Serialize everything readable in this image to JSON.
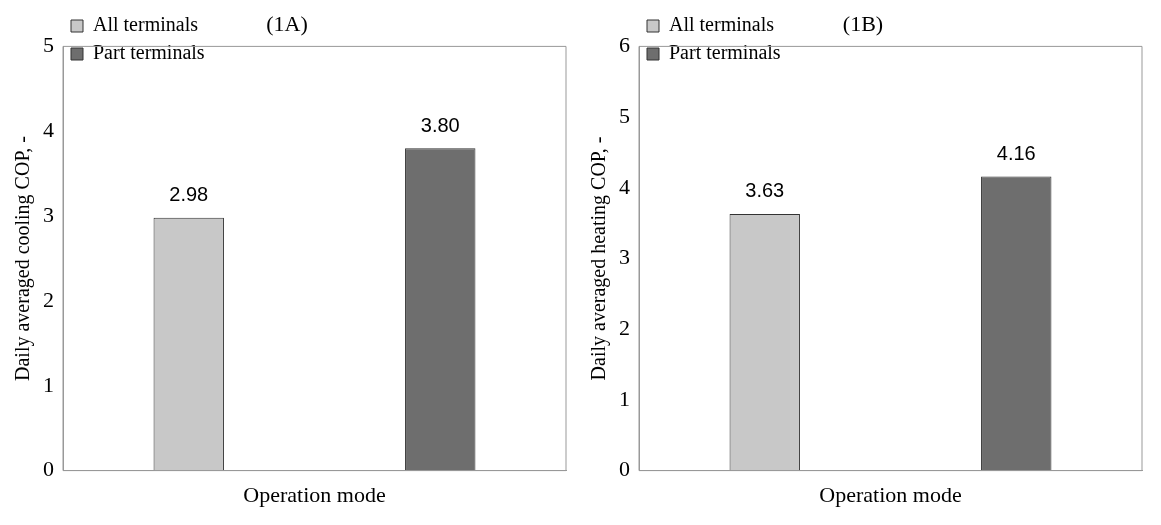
{
  "chart_data": [
    {
      "type": "bar",
      "title": "(1A)",
      "xlabel": "Operation mode",
      "ylabel": "Daily averaged cooling COP, -",
      "categories": [
        null,
        null
      ],
      "series": [
        {
          "name": "All terminals",
          "color": "#c8c8c8",
          "values": [
            2.98,
            null
          ]
        },
        {
          "name": "Part terminals",
          "color": "#6e6e6e",
          "values": [
            null,
            3.8
          ]
        }
      ],
      "value_labels": [
        "2.98",
        "3.80"
      ],
      "ylim": [
        0,
        5
      ],
      "yticks": [
        0,
        1,
        2,
        3,
        4,
        5
      ],
      "grid": false,
      "legend": "top left"
    },
    {
      "type": "bar",
      "title": "(1B)",
      "xlabel": "Operation mode",
      "ylabel": "Daily averaged heating COP, -",
      "categories": [
        null,
        null
      ],
      "series": [
        {
          "name": "All terminals",
          "color": "#c8c8c8",
          "values": [
            3.63,
            null
          ]
        },
        {
          "name": "Part terminals",
          "color": "#6e6e6e",
          "values": [
            null,
            4.16
          ]
        }
      ],
      "value_labels": [
        "3.63",
        "4.16"
      ],
      "ylim": [
        0,
        6
      ],
      "yticks": [
        0,
        1,
        2,
        3,
        4,
        5,
        6
      ],
      "grid": false,
      "legend": "top left"
    }
  ]
}
